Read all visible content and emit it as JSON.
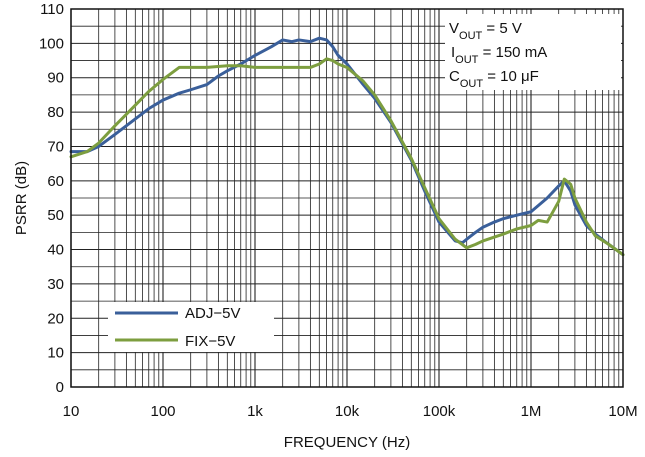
{
  "chart_data": {
    "type": "line",
    "xlabel": "FREQUENCY (Hz)",
    "ylabel": "PSRR (dB)",
    "x_scale": "log",
    "xlim": [
      10,
      10000000
    ],
    "ylim": [
      0,
      110
    ],
    "grid": true,
    "x_ticks": [
      "10",
      "100",
      "1k",
      "10k",
      "100k",
      "1M",
      "10M"
    ],
    "y_ticks": [
      "0",
      "10",
      "20",
      "30",
      "40",
      "50",
      "60",
      "70",
      "80",
      "90",
      "100",
      "110"
    ],
    "legend_position": "bottom-left",
    "annotation": {
      "line1": {
        "main": "V",
        "sub": "OUT",
        "rest": " = 5 V"
      },
      "line2": {
        "main": "I",
        "sub": "OUT",
        "rest": " = 150 mA"
      },
      "line3": {
        "main": "C",
        "sub": "OUT",
        "rest": " = 10 μF"
      }
    },
    "series": [
      {
        "name": "ADJ−5V",
        "color": "#3a5f9a",
        "x": [
          10,
          15,
          20,
          30,
          50,
          70,
          100,
          150,
          200,
          300,
          400,
          500,
          700,
          1000,
          1500,
          2000,
          2500,
          3000,
          4000,
          5000,
          6000,
          7000,
          8000,
          10000,
          15000,
          20000,
          30000,
          50000,
          70000,
          100000,
          150000,
          180000,
          200000,
          250000,
          300000,
          400000,
          500000,
          700000,
          1000000,
          1500000,
          2000000,
          2300000,
          2700000,
          3000000,
          4000000,
          5000000,
          7000000,
          10000000
        ],
        "y": [
          68.5,
          68.5,
          70,
          73.5,
          78,
          81,
          83.5,
          85.5,
          86.5,
          88,
          90.5,
          92,
          94,
          96.5,
          99,
          101,
          100.5,
          101,
          100.5,
          101.5,
          101,
          99,
          96.5,
          94,
          88,
          84,
          77,
          66,
          57,
          48,
          42.5,
          42,
          43,
          45,
          46.5,
          48,
          49,
          50,
          51,
          55,
          58.5,
          60,
          57,
          53,
          47,
          44.5,
          41.5,
          38.5
        ]
      },
      {
        "name": "FIX−5V",
        "color": "#7d9e3f",
        "x": [
          10,
          15,
          20,
          30,
          50,
          70,
          100,
          150,
          200,
          300,
          500,
          700,
          1000,
          1500,
          2000,
          3000,
          4000,
          5000,
          6000,
          7000,
          8000,
          10000,
          15000,
          20000,
          30000,
          50000,
          70000,
          100000,
          150000,
          200000,
          250000,
          300000,
          500000,
          700000,
          1000000,
          1200000,
          1500000,
          2000000,
          2300000,
          2700000,
          3000000,
          4000000,
          5000000,
          7000000,
          10000000
        ],
        "y": [
          67,
          68.5,
          71,
          76,
          82,
          86,
          89.5,
          93,
          93,
          93,
          93.5,
          93.5,
          93,
          93,
          93,
          93,
          93,
          94,
          95.5,
          95,
          94,
          93,
          89,
          85,
          77.5,
          66.5,
          58,
          49,
          43,
          40.5,
          41.5,
          42.5,
          44.5,
          46,
          47,
          48.5,
          48,
          54,
          60.5,
          59,
          55,
          48,
          44,
          41.5,
          38.5
        ]
      }
    ]
  }
}
